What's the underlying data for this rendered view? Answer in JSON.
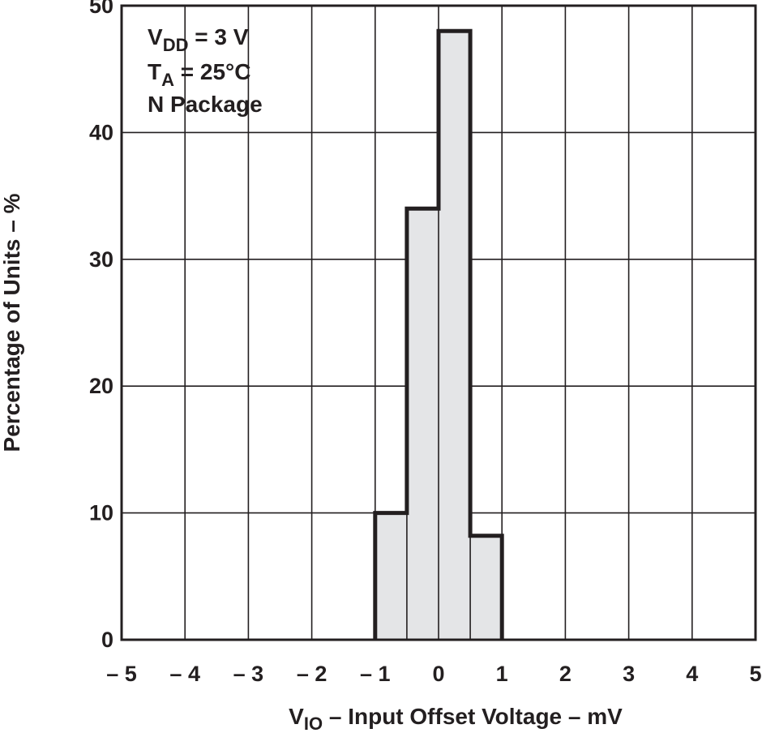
{
  "chart_data": {
    "type": "bar",
    "style": "histogram-step",
    "xlabel": {
      "prefix": "V",
      "subscript": "IO",
      "text": " – Input Offset Voltage – mV"
    },
    "ylabel": "Percentage of Units – %",
    "xlim": [
      -5,
      5
    ],
    "ylim": [
      0,
      50
    ],
    "x_ticks": [
      -5,
      -4,
      -3,
      -2,
      -1,
      0,
      1,
      2,
      3,
      4,
      5
    ],
    "x_tick_labels": [
      "– 5",
      "– 4",
      "– 3",
      "– 2",
      "– 1",
      "0",
      "1",
      "2",
      "3",
      "4",
      "5"
    ],
    "y_ticks": [
      0,
      10,
      20,
      30,
      40,
      50
    ],
    "y_tick_labels": [
      "0",
      "10",
      "20",
      "30",
      "40",
      "50"
    ],
    "grid": true,
    "bins": [
      {
        "x0": -1.0,
        "x1": -0.5,
        "value": 10
      },
      {
        "x0": -0.5,
        "x1": 0.0,
        "value": 34
      },
      {
        "x0": 0.0,
        "x1": 0.5,
        "value": 48
      },
      {
        "x0": 0.5,
        "x1": 1.0,
        "value": 8.2
      }
    ],
    "fill_color": "#e4e5e7",
    "line_color": "#231f20",
    "annotation": [
      {
        "main": "V",
        "sub": "DD",
        "rest": " = 3 V"
      },
      {
        "main": "T",
        "sub": "A",
        "rest": " = 25°C"
      },
      {
        "main": "N Package",
        "sub": "",
        "rest": ""
      }
    ],
    "annotation_position": "top-left"
  }
}
